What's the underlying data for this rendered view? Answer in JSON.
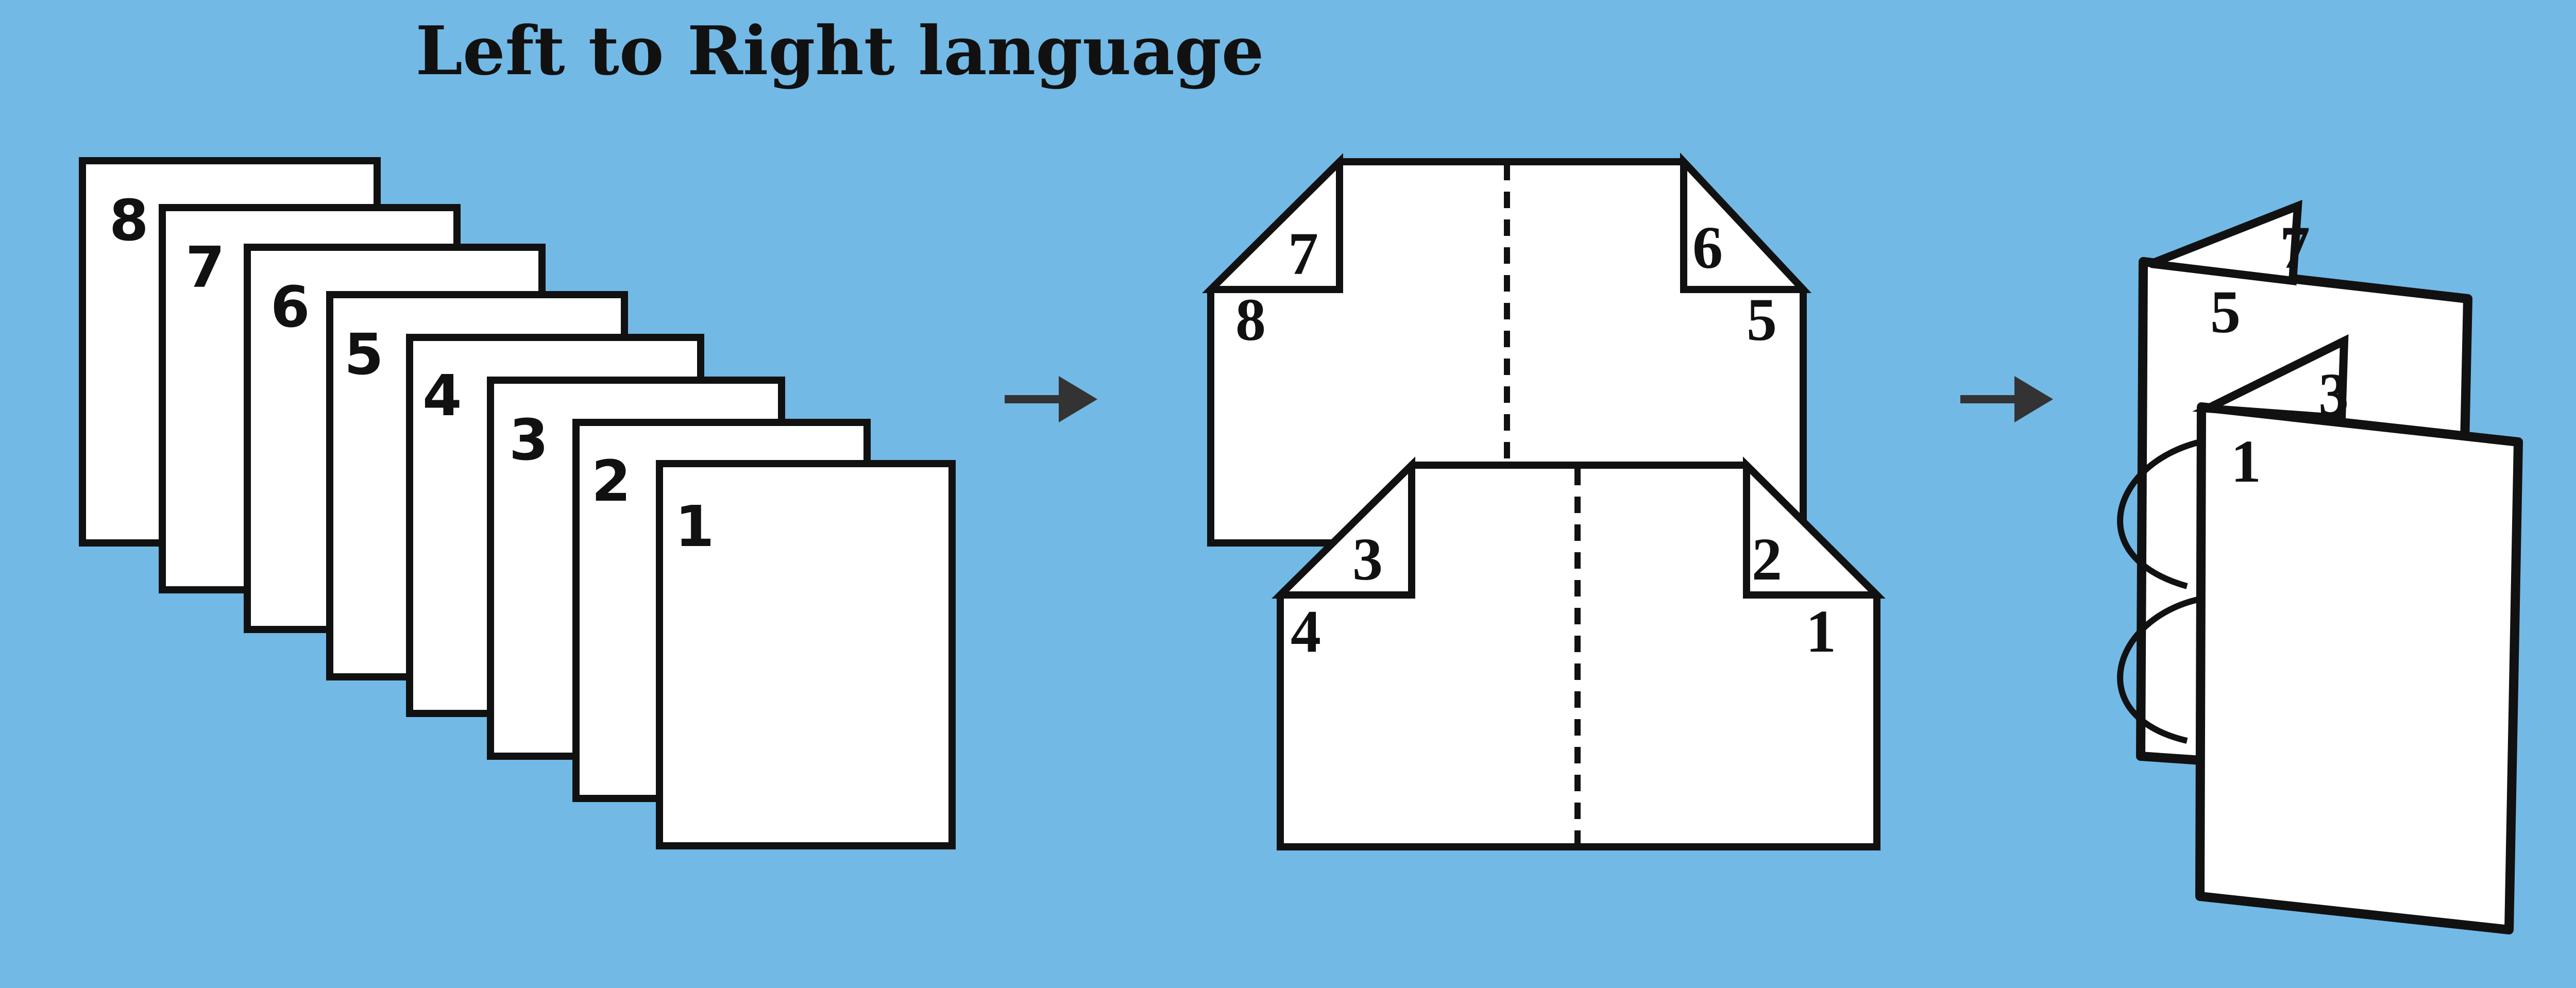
{
  "title": "Left to Right language",
  "colors": {
    "background": "#72b9e6",
    "paper": "#ffffff",
    "ink": "#111111",
    "arrow": "#333333"
  },
  "stack": {
    "page_numbers": [
      "8",
      "7",
      "6",
      "5",
      "4",
      "3",
      "2",
      "1"
    ]
  },
  "folded": {
    "back": {
      "left_flap": "7",
      "left_corner": "8",
      "right_flap": "6",
      "right_corner": "5"
    },
    "front": {
      "left_flap": "3",
      "left_corner": "4",
      "right_flap": "2",
      "right_corner": "1"
    }
  },
  "book": {
    "back_flap": "7",
    "back_page": "5",
    "front_flap": "3",
    "front_page": "1"
  },
  "icons": {
    "arrow_1": "arrow-right-icon",
    "arrow_2": "arrow-right-icon"
  }
}
